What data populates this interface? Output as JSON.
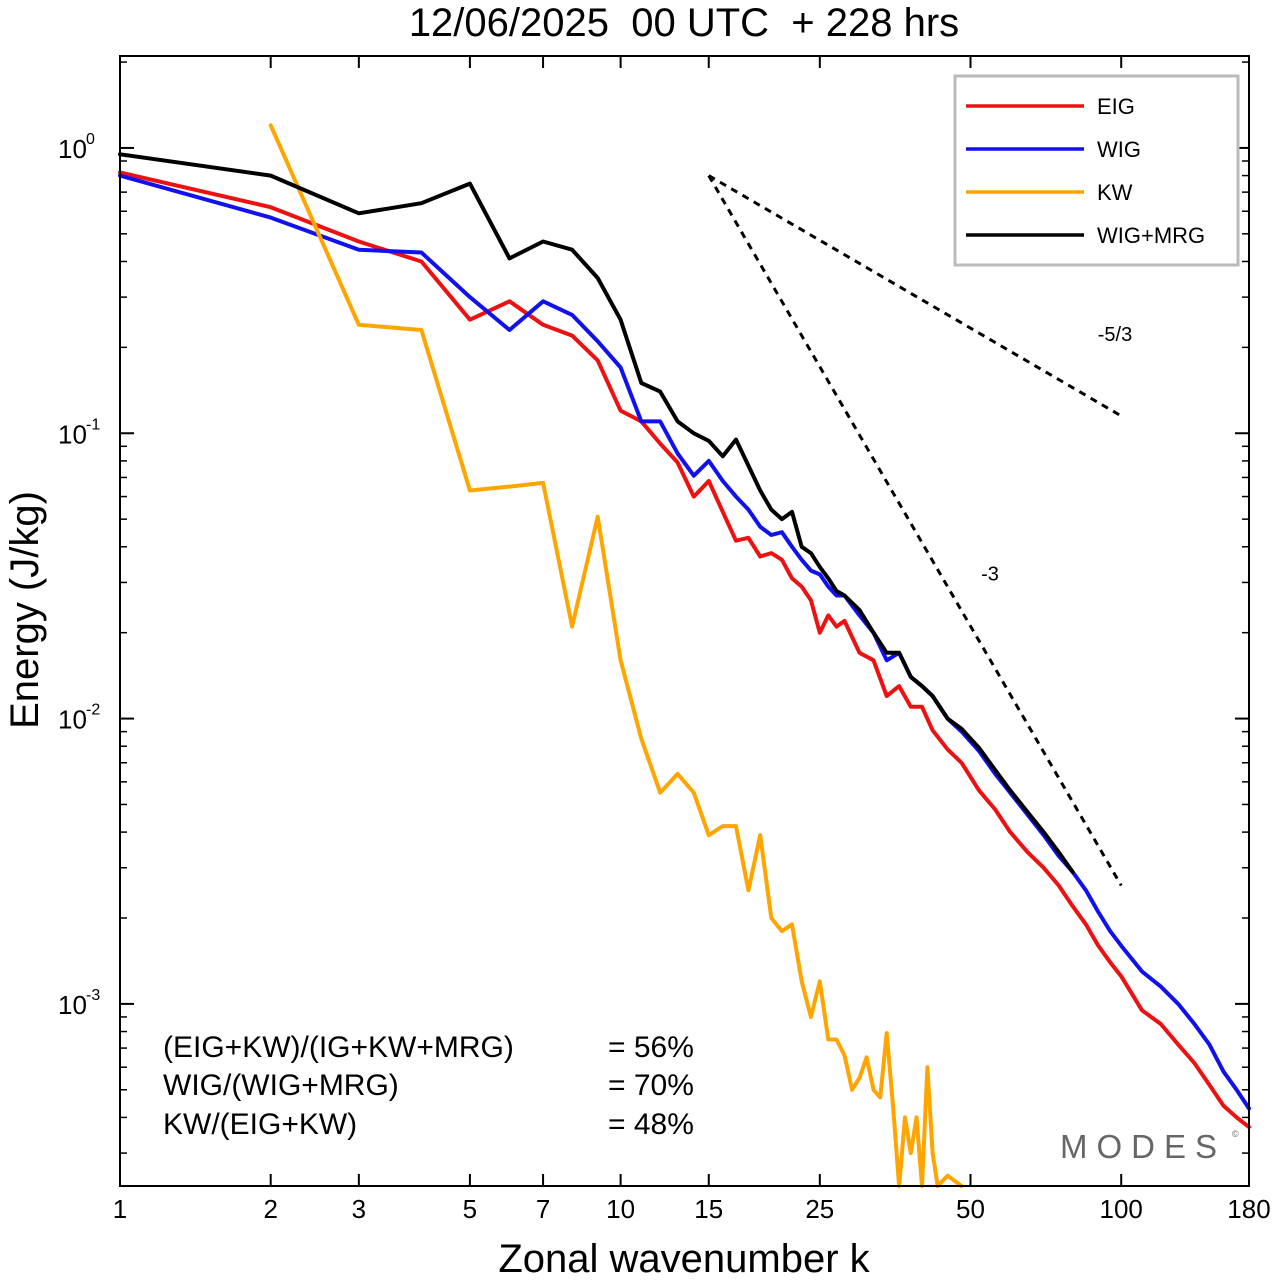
{
  "colors": {
    "EIG": "#ee1111",
    "WIG": "#1111ee",
    "KW": "#ffa500",
    "WIG+MRG": "#000000",
    "axis": "#000000",
    "logo": "#666666"
  },
  "watermark": {
    "text": "MODES",
    "mark": "©"
  },
  "stats": [
    {
      "label": "(EIG+KW)/(IG+KW+MRG)",
      "value": "= 56%"
    },
    {
      "label": "WIG/(WIG+MRG)",
      "value": "= 70%"
    },
    {
      "label": "KW/(EIG+KW)",
      "value": "= 48%"
    }
  ],
  "chart_data": {
    "type": "line",
    "title": "12/06/2025  00 UTC  + 228 hrs",
    "xlabel": "Zonal wavenumber k",
    "ylabel": "Energy (J/kg)",
    "xscale": "log",
    "yscale": "log",
    "xlim": [
      1,
      180
    ],
    "ylim": [
      0.00023,
      2.1
    ],
    "grid": false,
    "legend_position": "top-right",
    "x_ticks": [
      1,
      2,
      3,
      5,
      7,
      10,
      15,
      25,
      50,
      100,
      180
    ],
    "y_ticks": [
      {
        "value": 1,
        "base": "10",
        "exp": "0"
      },
      {
        "value": 0.1,
        "base": "10",
        "exp": "-1"
      },
      {
        "value": 0.01,
        "base": "10",
        "exp": "-2"
      },
      {
        "value": 0.001,
        "base": "10",
        "exp": "-3"
      }
    ],
    "series": [
      {
        "name": "EIG",
        "points": [
          [
            1,
            0.82
          ],
          [
            2,
            0.62
          ],
          [
            3,
            0.47
          ],
          [
            4,
            0.4
          ],
          [
            5,
            0.25
          ],
          [
            6,
            0.29
          ],
          [
            7,
            0.24
          ],
          [
            8,
            0.22
          ],
          [
            9,
            0.18
          ],
          [
            10,
            0.12
          ],
          [
            11,
            0.11
          ],
          [
            12,
            0.092
          ],
          [
            13,
            0.079
          ],
          [
            14,
            0.06
          ],
          [
            15,
            0.068
          ],
          [
            16,
            0.053
          ],
          [
            17,
            0.042
          ],
          [
            18,
            0.043
          ],
          [
            19,
            0.037
          ],
          [
            20,
            0.038
          ],
          [
            21,
            0.036
          ],
          [
            22,
            0.031
          ],
          [
            23,
            0.029
          ],
          [
            24,
            0.026
          ],
          [
            25,
            0.02
          ],
          [
            26,
            0.023
          ],
          [
            27,
            0.021
          ],
          [
            28,
            0.022
          ],
          [
            30,
            0.017
          ],
          [
            32,
            0.016
          ],
          [
            34,
            0.012
          ],
          [
            36,
            0.013
          ],
          [
            38,
            0.011
          ],
          [
            40,
            0.011
          ],
          [
            42,
            0.0091
          ],
          [
            45,
            0.0078
          ],
          [
            48,
            0.007
          ],
          [
            52,
            0.0056
          ],
          [
            56,
            0.0048
          ],
          [
            60,
            0.004
          ],
          [
            65,
            0.0034
          ],
          [
            70,
            0.003
          ],
          [
            75,
            0.0026
          ],
          [
            80,
            0.0022
          ],
          [
            85,
            0.0019
          ],
          [
            90,
            0.0016
          ],
          [
            95,
            0.0014
          ],
          [
            100,
            0.00125
          ],
          [
            110,
            0.00095
          ],
          [
            120,
            0.00085
          ],
          [
            130,
            0.00072
          ],
          [
            140,
            0.00062
          ],
          [
            150,
            0.00052
          ],
          [
            160,
            0.00044
          ],
          [
            170,
            0.0004
          ],
          [
            180,
            0.00037
          ]
        ]
      },
      {
        "name": "WIG",
        "points": [
          [
            1,
            0.8
          ],
          [
            2,
            0.57
          ],
          [
            3,
            0.44
          ],
          [
            4,
            0.43
          ],
          [
            5,
            0.3
          ],
          [
            6,
            0.23
          ],
          [
            7,
            0.29
          ],
          [
            8,
            0.26
          ],
          [
            9,
            0.21
          ],
          [
            10,
            0.17
          ],
          [
            11,
            0.11
          ],
          [
            12,
            0.11
          ],
          [
            13,
            0.085
          ],
          [
            14,
            0.071
          ],
          [
            15,
            0.08
          ],
          [
            16,
            0.068
          ],
          [
            17,
            0.06
          ],
          [
            18,
            0.054
          ],
          [
            19,
            0.047
          ],
          [
            20,
            0.044
          ],
          [
            21,
            0.045
          ],
          [
            22,
            0.04
          ],
          [
            23,
            0.036
          ],
          [
            24,
            0.033
          ],
          [
            25,
            0.032
          ],
          [
            26,
            0.029
          ],
          [
            27,
            0.027
          ],
          [
            28,
            0.027
          ],
          [
            30,
            0.023
          ],
          [
            32,
            0.02
          ],
          [
            34,
            0.016
          ],
          [
            36,
            0.017
          ],
          [
            38,
            0.014
          ],
          [
            40,
            0.013
          ],
          [
            42,
            0.012
          ],
          [
            45,
            0.01
          ],
          [
            48,
            0.009
          ],
          [
            52,
            0.0077
          ],
          [
            56,
            0.0064
          ],
          [
            60,
            0.0055
          ],
          [
            65,
            0.0046
          ],
          [
            70,
            0.0039
          ],
          [
            75,
            0.0033
          ],
          [
            80,
            0.0029
          ],
          [
            85,
            0.0025
          ],
          [
            90,
            0.0021
          ],
          [
            95,
            0.0018
          ],
          [
            100,
            0.0016
          ],
          [
            110,
            0.0013
          ],
          [
            120,
            0.00115
          ],
          [
            130,
            0.001
          ],
          [
            140,
            0.00085
          ],
          [
            150,
            0.00072
          ],
          [
            160,
            0.00058
          ],
          [
            170,
            0.0005
          ],
          [
            180,
            0.00043
          ]
        ]
      },
      {
        "name": "KW",
        "points": [
          [
            2,
            1.2
          ],
          [
            3,
            0.24
          ],
          [
            4,
            0.23
          ],
          [
            5,
            0.063
          ],
          [
            6,
            0.065
          ],
          [
            7,
            0.067
          ],
          [
            8,
            0.021
          ],
          [
            9,
            0.051
          ],
          [
            10,
            0.016
          ],
          [
            11,
            0.0085
          ],
          [
            12,
            0.0055
          ],
          [
            13,
            0.0064
          ],
          [
            14,
            0.0055
          ],
          [
            15,
            0.0039
          ],
          [
            16,
            0.0042
          ],
          [
            17,
            0.0042
          ],
          [
            18,
            0.0025
          ],
          [
            19,
            0.0039
          ],
          [
            20,
            0.002
          ],
          [
            21,
            0.0018
          ],
          [
            22,
            0.0019
          ],
          [
            23,
            0.0012
          ],
          [
            24,
            0.0009
          ],
          [
            25,
            0.0012
          ],
          [
            26,
            0.00075
          ],
          [
            27,
            0.00075
          ],
          [
            28,
            0.00066
          ],
          [
            29,
            0.0005
          ],
          [
            30,
            0.00055
          ],
          [
            31,
            0.00065
          ],
          [
            32,
            0.0005
          ],
          [
            33,
            0.00047
          ],
          [
            34,
            0.00079
          ],
          [
            35,
            0.00044
          ],
          [
            36,
            0.00022
          ],
          [
            37,
            0.0004
          ],
          [
            38,
            0.0003
          ],
          [
            39,
            0.0004
          ],
          [
            40,
            0.00023
          ],
          [
            41,
            0.0006
          ],
          [
            42,
            0.0003
          ],
          [
            43,
            0.00023
          ],
          [
            45,
            0.00025
          ],
          [
            48,
            0.00022
          ]
        ]
      },
      {
        "name": "WIG+MRG",
        "points": [
          [
            1,
            0.95
          ],
          [
            2,
            0.8
          ],
          [
            3,
            0.59
          ],
          [
            4,
            0.64
          ],
          [
            5,
            0.75
          ],
          [
            6,
            0.41
          ],
          [
            7,
            0.47
          ],
          [
            8,
            0.44
          ],
          [
            9,
            0.35
          ],
          [
            10,
            0.25
          ],
          [
            11,
            0.15
          ],
          [
            12,
            0.14
          ],
          [
            13,
            0.11
          ],
          [
            14,
            0.1
          ],
          [
            15,
            0.094
          ],
          [
            16,
            0.083
          ],
          [
            17,
            0.095
          ],
          [
            18,
            0.077
          ],
          [
            19,
            0.063
          ],
          [
            20,
            0.054
          ],
          [
            21,
            0.05
          ],
          [
            22,
            0.053
          ],
          [
            23,
            0.04
          ],
          [
            24,
            0.038
          ],
          [
            25,
            0.034
          ],
          [
            26,
            0.031
          ],
          [
            27,
            0.028
          ],
          [
            28,
            0.027
          ],
          [
            30,
            0.024
          ],
          [
            32,
            0.02
          ],
          [
            34,
            0.017
          ],
          [
            36,
            0.017
          ],
          [
            38,
            0.014
          ],
          [
            40,
            0.013
          ],
          [
            42,
            0.012
          ],
          [
            45,
            0.01
          ],
          [
            48,
            0.0092
          ],
          [
            52,
            0.0079
          ],
          [
            56,
            0.0066
          ],
          [
            60,
            0.0056
          ],
          [
            65,
            0.0047
          ],
          [
            70,
            0.004
          ],
          [
            75,
            0.0034
          ],
          [
            80,
            0.0029
          ]
        ]
      }
    ],
    "reference_lines": [
      {
        "label": "-5/3",
        "x": [
          15,
          100
        ],
        "y": [
          0.8,
          0.115
        ]
      },
      {
        "label": "-3",
        "x": [
          15,
          100
        ],
        "y": [
          0.8,
          0.0026
        ]
      }
    ]
  }
}
